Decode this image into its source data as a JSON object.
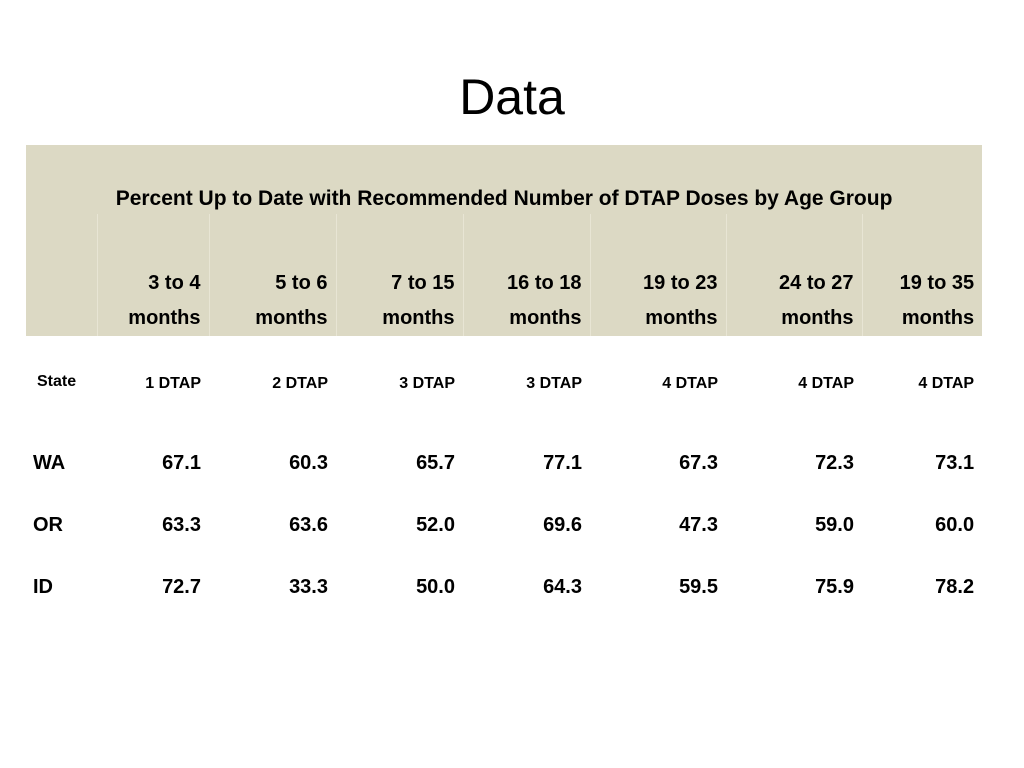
{
  "slide": {
    "title": "Data"
  },
  "table": {
    "caption": "Percent Up to Date with Recommended Number of DTAP Doses by Age Group",
    "age_groups": [
      {
        "line1": "3 to 4",
        "line2": "months"
      },
      {
        "line1": "5 to 6",
        "line2": "months"
      },
      {
        "line1": "7 to 15",
        "line2": "months"
      },
      {
        "line1": "16 to 18",
        "line2": "months"
      },
      {
        "line1": "19 to 23",
        "line2": "months"
      },
      {
        "line1": "24 to 27",
        "line2": "months"
      },
      {
        "line1": "19 to 35",
        "line2": "months"
      }
    ],
    "state_header": "State",
    "doses": [
      "1 DTAP",
      "2 DTAP",
      "3 DTAP",
      "3 DTAP",
      "4 DTAP",
      "4 DTAP",
      "4 DTAP"
    ],
    "rows": [
      {
        "state": "WA",
        "values": [
          "67.1",
          "60.3",
          "65.7",
          "77.1",
          "67.3",
          "72.3",
          "73.1"
        ]
      },
      {
        "state": "OR",
        "values": [
          "63.3",
          "63.6",
          "52.0",
          "69.6",
          "47.3",
          "59.0",
          "60.0"
        ]
      },
      {
        "state": "ID",
        "values": [
          "72.7",
          "33.3",
          "50.0",
          "64.3",
          "59.5",
          "75.9",
          "78.2"
        ]
      }
    ]
  },
  "colors": {
    "header_background": "#dcd9c4",
    "page_background": "#ffffff",
    "text": "#000000"
  }
}
